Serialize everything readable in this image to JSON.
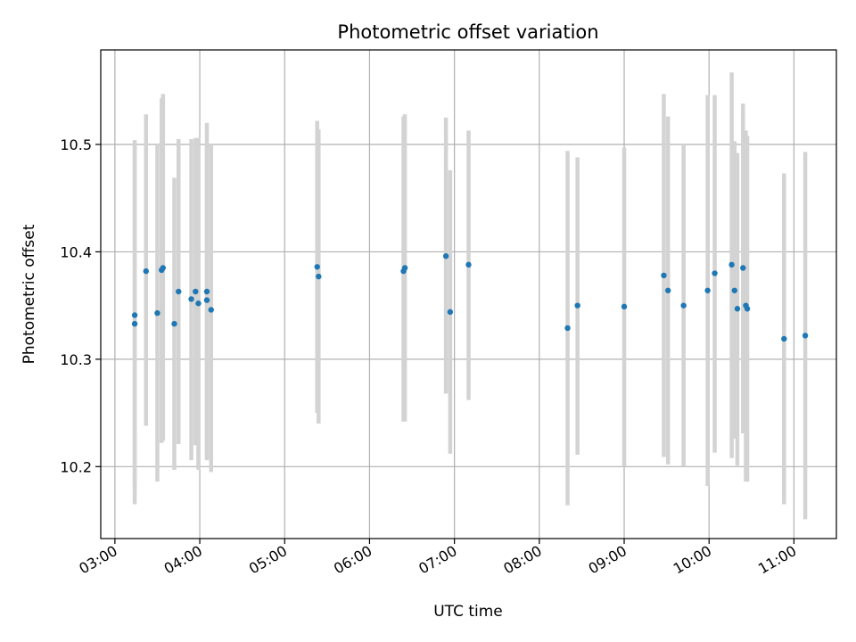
{
  "chart_data": {
    "type": "scatter",
    "title": "Photometric offset variation",
    "xlabel": "UTC time",
    "ylabel": "Photometric offset",
    "x_ticks": [
      "03:00",
      "04:00",
      "05:00",
      "06:00",
      "07:00",
      "08:00",
      "09:00",
      "10:00",
      "11:00"
    ],
    "y_ticks": [
      "10.2",
      "10.3",
      "10.4",
      "10.5"
    ],
    "xlim": [
      "02:50",
      "11:30"
    ],
    "ylim": [
      10.133,
      10.588
    ],
    "grid": true,
    "point_color": "#1f77b4",
    "errorbar_color": "#d3d3d3",
    "series": [
      {
        "points": [
          {
            "t": "03:14",
            "y": 10.333,
            "lo": 10.165,
            "hi": 10.504
          },
          {
            "t": "03:14",
            "y": 10.341,
            "lo": 10.182,
            "hi": 10.5
          },
          {
            "t": "03:22",
            "y": 10.382,
            "lo": 10.238,
            "hi": 10.528
          },
          {
            "t": "03:30",
            "y": 10.343,
            "lo": 10.186,
            "hi": 10.5
          },
          {
            "t": "03:33",
            "y": 10.383,
            "lo": 10.222,
            "hi": 10.543
          },
          {
            "t": "03:34",
            "y": 10.385,
            "lo": 10.224,
            "hi": 10.547
          },
          {
            "t": "03:42",
            "y": 10.333,
            "lo": 10.197,
            "hi": 10.469
          },
          {
            "t": "03:45",
            "y": 10.363,
            "lo": 10.221,
            "hi": 10.505
          },
          {
            "t": "03:54",
            "y": 10.356,
            "lo": 10.206,
            "hi": 10.505
          },
          {
            "t": "03:57",
            "y": 10.363,
            "lo": 10.22,
            "hi": 10.506
          },
          {
            "t": "03:59",
            "y": 10.352,
            "lo": 10.197,
            "hi": 10.506
          },
          {
            "t": "04:05",
            "y": 10.355,
            "lo": 10.208,
            "hi": 10.499
          },
          {
            "t": "04:05",
            "y": 10.363,
            "lo": 10.206,
            "hi": 10.52
          },
          {
            "t": "04:08",
            "y": 10.346,
            "lo": 10.195,
            "hi": 10.5
          },
          {
            "t": "05:23",
            "y": 10.386,
            "lo": 10.25,
            "hi": 10.522
          },
          {
            "t": "05:24",
            "y": 10.377,
            "lo": 10.24,
            "hi": 10.514
          },
          {
            "t": "06:24",
            "y": 10.382,
            "lo": 10.242,
            "hi": 10.526
          },
          {
            "t": "06:25",
            "y": 10.385,
            "lo": 10.242,
            "hi": 10.528
          },
          {
            "t": "06:54",
            "y": 10.396,
            "lo": 10.268,
            "hi": 10.525
          },
          {
            "t": "06:57",
            "y": 10.344,
            "lo": 10.212,
            "hi": 10.476
          },
          {
            "t": "07:10",
            "y": 10.388,
            "lo": 10.262,
            "hi": 10.513
          },
          {
            "t": "08:20",
            "y": 10.329,
            "lo": 10.164,
            "hi": 10.494
          },
          {
            "t": "08:27",
            "y": 10.35,
            "lo": 10.211,
            "hi": 10.488
          },
          {
            "t": "09:00",
            "y": 10.349,
            "lo": 10.2,
            "hi": 10.497
          },
          {
            "t": "09:28",
            "y": 10.378,
            "lo": 10.209,
            "hi": 10.547
          },
          {
            "t": "09:31",
            "y": 10.364,
            "lo": 10.202,
            "hi": 10.526
          },
          {
            "t": "09:42",
            "y": 10.35,
            "lo": 10.2,
            "hi": 10.5
          },
          {
            "t": "09:59",
            "y": 10.364,
            "lo": 10.182,
            "hi": 10.546
          },
          {
            "t": "10:04",
            "y": 10.38,
            "lo": 10.213,
            "hi": 10.546
          },
          {
            "t": "10:16",
            "y": 10.388,
            "lo": 10.208,
            "hi": 10.567
          },
          {
            "t": "10:18",
            "y": 10.364,
            "lo": 10.226,
            "hi": 10.503
          },
          {
            "t": "10:20",
            "y": 10.347,
            "lo": 10.201,
            "hi": 10.492
          },
          {
            "t": "10:24",
            "y": 10.385,
            "lo": 10.231,
            "hi": 10.538
          },
          {
            "t": "10:26",
            "y": 10.35,
            "lo": 10.186,
            "hi": 10.513
          },
          {
            "t": "10:27",
            "y": 10.347,
            "lo": 10.186,
            "hi": 10.508
          },
          {
            "t": "10:53",
            "y": 10.319,
            "lo": 10.165,
            "hi": 10.473
          },
          {
            "t": "11:08",
            "y": 10.322,
            "lo": 10.151,
            "hi": 10.493
          }
        ]
      }
    ]
  }
}
